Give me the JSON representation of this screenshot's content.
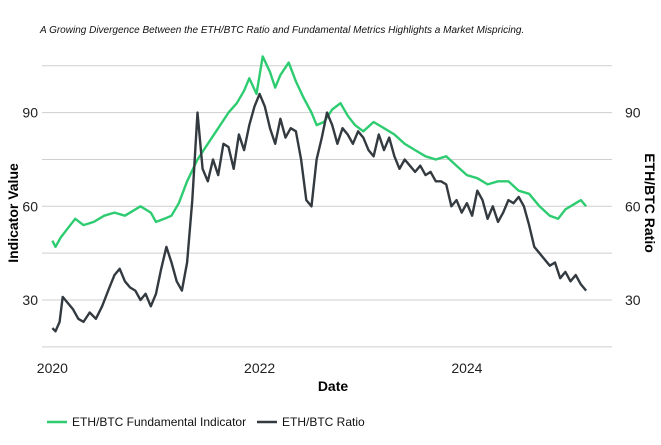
{
  "chart_data": {
    "type": "line",
    "title": "A Growing Divergence Between the ETH/BTC Ratio and Fundamental Metrics Highlights a Market Mispricing.",
    "xlabel": "Date",
    "ylabel": "Indicator Value",
    "y2label": "ETH/BTC Ratio",
    "xlim": [
      2019.9,
      2025.4
    ],
    "ylim": [
      14,
      111
    ],
    "x_ticks": [
      2020,
      2022,
      2024
    ],
    "x_tick_labels": [
      "2020",
      "2022",
      "2024"
    ],
    "y_ticks": [
      30,
      60,
      90
    ],
    "y_tick_labels": [
      "30",
      "60",
      "90"
    ],
    "y2_ticks": [
      30,
      60,
      90
    ],
    "y2_tick_labels": [
      "30",
      "60",
      "90"
    ],
    "grid": "horizontal",
    "legend_position": "bottom-left",
    "series": [
      {
        "name": "ETH/BTC Fundamental Indicator",
        "color": "#2ecc71",
        "axis": "left",
        "points": [
          [
            2020.0,
            49
          ],
          [
            2020.03,
            47
          ],
          [
            2020.08,
            50
          ],
          [
            2020.15,
            53
          ],
          [
            2020.22,
            56
          ],
          [
            2020.3,
            54
          ],
          [
            2020.4,
            55
          ],
          [
            2020.5,
            57
          ],
          [
            2020.6,
            58
          ],
          [
            2020.7,
            57
          ],
          [
            2020.85,
            60
          ],
          [
            2020.95,
            58
          ],
          [
            2021.0,
            55
          ],
          [
            2021.08,
            56
          ],
          [
            2021.15,
            57
          ],
          [
            2021.22,
            61
          ],
          [
            2021.3,
            68
          ],
          [
            2021.4,
            75
          ],
          [
            2021.5,
            80
          ],
          [
            2021.6,
            85
          ],
          [
            2021.7,
            90
          ],
          [
            2021.78,
            93
          ],
          [
            2021.85,
            97
          ],
          [
            2021.9,
            101
          ],
          [
            2021.97,
            96
          ],
          [
            2022.03,
            108
          ],
          [
            2022.1,
            103
          ],
          [
            2022.15,
            98
          ],
          [
            2022.2,
            102
          ],
          [
            2022.28,
            106
          ],
          [
            2022.35,
            100
          ],
          [
            2022.42,
            95
          ],
          [
            2022.5,
            90
          ],
          [
            2022.55,
            86
          ],
          [
            2022.62,
            87
          ],
          [
            2022.7,
            91
          ],
          [
            2022.78,
            93
          ],
          [
            2022.85,
            89
          ],
          [
            2022.92,
            86
          ],
          [
            2023.0,
            84
          ],
          [
            2023.1,
            87
          ],
          [
            2023.2,
            85
          ],
          [
            2023.3,
            83
          ],
          [
            2023.4,
            80
          ],
          [
            2023.5,
            78
          ],
          [
            2023.6,
            76
          ],
          [
            2023.7,
            75
          ],
          [
            2023.8,
            76
          ],
          [
            2023.9,
            73
          ],
          [
            2024.0,
            70
          ],
          [
            2024.1,
            69
          ],
          [
            2024.2,
            67
          ],
          [
            2024.3,
            68
          ],
          [
            2024.4,
            68
          ],
          [
            2024.5,
            65
          ],
          [
            2024.6,
            64
          ],
          [
            2024.7,
            60
          ],
          [
            2024.8,
            57
          ],
          [
            2024.88,
            56
          ],
          [
            2024.95,
            59
          ],
          [
            2025.05,
            61
          ],
          [
            2025.1,
            62
          ],
          [
            2025.15,
            60
          ]
        ]
      },
      {
        "name": "ETH/BTC Ratio",
        "color": "#333a40",
        "axis": "right",
        "points": [
          [
            2020.0,
            21
          ],
          [
            2020.03,
            20
          ],
          [
            2020.07,
            23
          ],
          [
            2020.1,
            31
          ],
          [
            2020.15,
            29
          ],
          [
            2020.2,
            27
          ],
          [
            2020.25,
            24
          ],
          [
            2020.3,
            23
          ],
          [
            2020.36,
            26
          ],
          [
            2020.42,
            24
          ],
          [
            2020.48,
            28
          ],
          [
            2020.55,
            34
          ],
          [
            2020.6,
            38
          ],
          [
            2020.65,
            40
          ],
          [
            2020.7,
            36
          ],
          [
            2020.75,
            34
          ],
          [
            2020.8,
            33
          ],
          [
            2020.85,
            30
          ],
          [
            2020.9,
            32
          ],
          [
            2020.95,
            28
          ],
          [
            2021.0,
            32
          ],
          [
            2021.05,
            40
          ],
          [
            2021.1,
            47
          ],
          [
            2021.15,
            42
          ],
          [
            2021.2,
            36
          ],
          [
            2021.25,
            33
          ],
          [
            2021.3,
            42
          ],
          [
            2021.35,
            62
          ],
          [
            2021.4,
            90
          ],
          [
            2021.45,
            72
          ],
          [
            2021.5,
            68
          ],
          [
            2021.55,
            75
          ],
          [
            2021.6,
            70
          ],
          [
            2021.65,
            80
          ],
          [
            2021.7,
            79
          ],
          [
            2021.75,
            72
          ],
          [
            2021.8,
            83
          ],
          [
            2021.85,
            78
          ],
          [
            2021.9,
            86
          ],
          [
            2021.95,
            92
          ],
          [
            2022.0,
            96
          ],
          [
            2022.05,
            92
          ],
          [
            2022.1,
            85
          ],
          [
            2022.15,
            80
          ],
          [
            2022.2,
            88
          ],
          [
            2022.25,
            82
          ],
          [
            2022.3,
            85
          ],
          [
            2022.35,
            84
          ],
          [
            2022.4,
            75
          ],
          [
            2022.45,
            62
          ],
          [
            2022.5,
            60
          ],
          [
            2022.55,
            75
          ],
          [
            2022.6,
            82
          ],
          [
            2022.65,
            90
          ],
          [
            2022.7,
            86
          ],
          [
            2022.75,
            80
          ],
          [
            2022.8,
            85
          ],
          [
            2022.85,
            83
          ],
          [
            2022.9,
            80
          ],
          [
            2022.95,
            84
          ],
          [
            2023.0,
            82
          ],
          [
            2023.05,
            78
          ],
          [
            2023.1,
            76
          ],
          [
            2023.15,
            83
          ],
          [
            2023.2,
            78
          ],
          [
            2023.25,
            82
          ],
          [
            2023.3,
            76
          ],
          [
            2023.35,
            72
          ],
          [
            2023.4,
            75
          ],
          [
            2023.45,
            73
          ],
          [
            2023.5,
            71
          ],
          [
            2023.55,
            73
          ],
          [
            2023.6,
            70
          ],
          [
            2023.65,
            71
          ],
          [
            2023.7,
            68
          ],
          [
            2023.75,
            68
          ],
          [
            2023.8,
            67
          ],
          [
            2023.85,
            60
          ],
          [
            2023.9,
            62
          ],
          [
            2023.95,
            58
          ],
          [
            2024.0,
            61
          ],
          [
            2024.05,
            57
          ],
          [
            2024.1,
            65
          ],
          [
            2024.15,
            62
          ],
          [
            2024.2,
            56
          ],
          [
            2024.25,
            60
          ],
          [
            2024.3,
            55
          ],
          [
            2024.35,
            58
          ],
          [
            2024.4,
            62
          ],
          [
            2024.45,
            61
          ],
          [
            2024.5,
            63
          ],
          [
            2024.55,
            60
          ],
          [
            2024.6,
            54
          ],
          [
            2024.65,
            47
          ],
          [
            2024.7,
            45
          ],
          [
            2024.75,
            43
          ],
          [
            2024.8,
            41
          ],
          [
            2024.85,
            42
          ],
          [
            2024.9,
            37
          ],
          [
            2024.95,
            39
          ],
          [
            2025.0,
            36
          ],
          [
            2025.05,
            38
          ],
          [
            2025.1,
            35
          ],
          [
            2025.15,
            33
          ]
        ]
      }
    ]
  }
}
